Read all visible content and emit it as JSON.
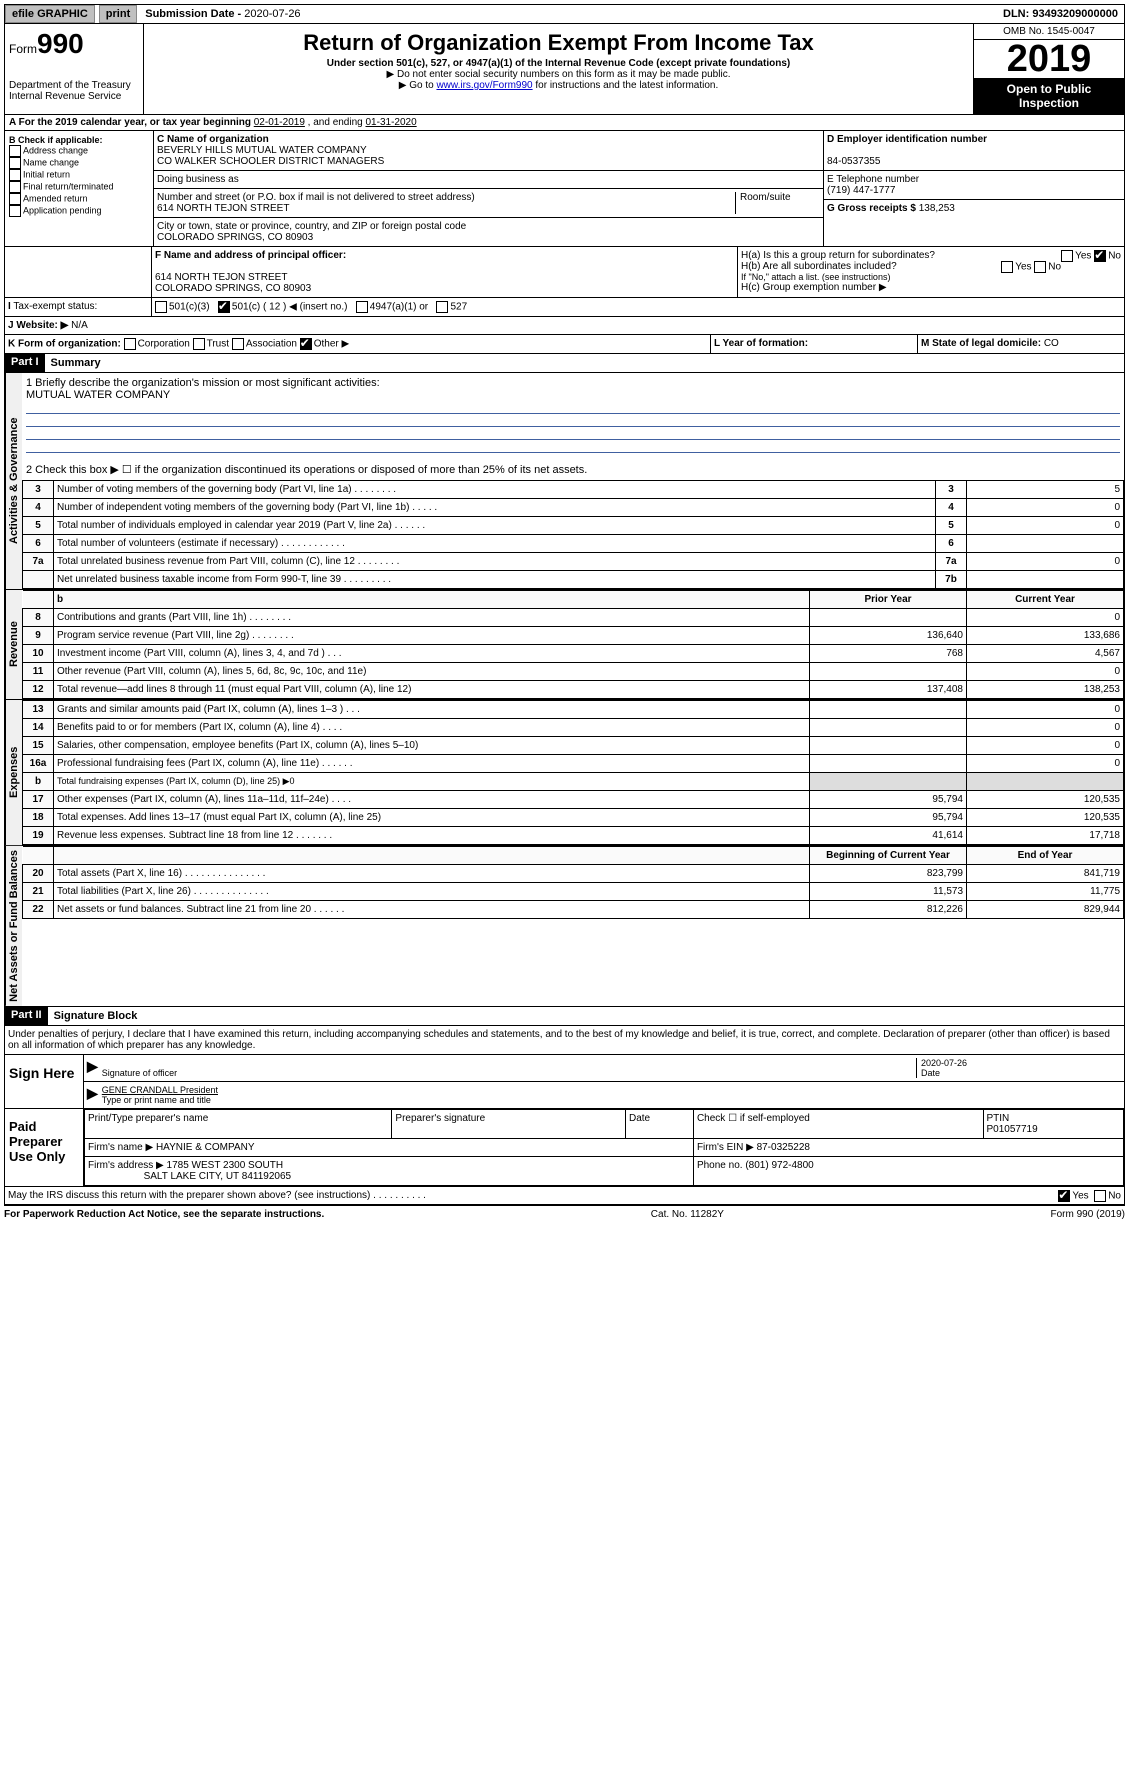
{
  "topbar": {
    "efile": "efile GRAPHIC",
    "print": "print",
    "subdate_lbl": "Submission Date - ",
    "subdate": "2020-07-26",
    "dln_lbl": "DLN: ",
    "dln": "93493209000000"
  },
  "header": {
    "form_prefix": "Form",
    "form_no": "990",
    "dept": "Department of the Treasury\nInternal Revenue Service",
    "title": "Return of Organization Exempt From Income Tax",
    "subtitle": "Under section 501(c), 527, or 4947(a)(1) of the Internal Revenue Code (except private foundations)",
    "note1": "▶ Do not enter social security numbers on this form as it may be made public.",
    "note2_pre": "▶ Go to ",
    "note2_link": "www.irs.gov/Form990",
    "note2_post": " for instructions and the latest information.",
    "omb": "OMB No. 1545-0047",
    "year": "2019",
    "open": "Open to Public Inspection"
  },
  "A": {
    "text": "A For the 2019 calendar year, or tax year beginning ",
    "begin": "02-01-2019",
    "mid": " , and ending ",
    "end": "01-31-2020"
  },
  "B": {
    "hdr": "B Check if applicable:",
    "items": [
      "Address change",
      "Name change",
      "Initial return",
      "Final return/terminated",
      "Amended return",
      "Application pending"
    ]
  },
  "C": {
    "name_lbl": "C Name of organization",
    "name": "BEVERLY HILLS MUTUAL WATER COMPANY",
    "co": "CO WALKER SCHOOLER DISTRICT MANAGERS",
    "dba_lbl": "Doing business as",
    "addr_lbl": "Number and street (or P.O. box if mail is not delivered to street address)",
    "room_lbl": "Room/suite",
    "addr": "614 NORTH TEJON STREET",
    "city_lbl": "City or town, state or province, country, and ZIP or foreign postal code",
    "city": "COLORADO SPRINGS, CO  80903"
  },
  "D": {
    "lbl": "D Employer identification number",
    "val": "84-0537355"
  },
  "E": {
    "lbl": "E Telephone number",
    "val": "(719) 447-1777"
  },
  "G": {
    "lbl": "G Gross receipts $ ",
    "val": "138,253"
  },
  "F": {
    "lbl": "F Name and address of principal officer:",
    "addr1": "614 NORTH TEJON STREET",
    "addr2": "COLORADO SPRINGS, CO  80903"
  },
  "H": {
    "a": "H(a)  Is this a group return for subordinates?",
    "b": "H(b)  Are all subordinates included?",
    "b_note": "If \"No,\" attach a list. (see instructions)",
    "c": "H(c)  Group exemption number ▶",
    "yes": "Yes",
    "no": "No"
  },
  "I": {
    "lbl": "Tax-exempt status:",
    "o1": "501(c)(3)",
    "o2": "501(c) ( 12 ) ◀ (insert no.)",
    "o3": "4947(a)(1) or",
    "o4": "527"
  },
  "J": {
    "lbl": "Website: ▶",
    "val": "N/A"
  },
  "K": {
    "lbl": "K Form of organization:",
    "o1": "Corporation",
    "o2": "Trust",
    "o3": "Association",
    "o4": "Other ▶"
  },
  "L": {
    "lbl": "L Year of formation:"
  },
  "M": {
    "lbl": "M State of legal domicile: ",
    "val": "CO"
  },
  "parts": {
    "p1": "Part I",
    "p1t": "Summary",
    "p2": "Part II",
    "p2t": "Signature Block",
    "vtabs": [
      "Activities & Governance",
      "Revenue",
      "Expenses",
      "Net Assets or Fund Balances"
    ]
  },
  "summary": {
    "q1": "1  Briefly describe the organization's mission or most significant activities:",
    "mission": "MUTUAL WATER COMPANY",
    "q2": "2  Check this box ▶ ☐  if the organization discontinued its operations or disposed of more than 25% of its net assets.",
    "rows1": [
      {
        "n": "3",
        "t": "Number of voting members of the governing body (Part VI, line 1a)  .   .   .   .   .   .   .   .",
        "rn": "3",
        "v": "5"
      },
      {
        "n": "4",
        "t": "Number of independent voting members of the governing body (Part VI, line 1b)  .   .   .   .   .",
        "rn": "4",
        "v": "0"
      },
      {
        "n": "5",
        "t": "Total number of individuals employed in calendar year 2019 (Part V, line 2a)  .   .   .   .   .   .",
        "rn": "5",
        "v": "0"
      },
      {
        "n": "6",
        "t": "Total number of volunteers (estimate if necessary)  .   .   .   .   .   .   .   .   .   .   .   .",
        "rn": "6",
        "v": ""
      },
      {
        "n": "7a",
        "t": "Total unrelated business revenue from Part VIII, column (C), line 12  .   .   .   .   .   .   .   .",
        "rn": "7a",
        "v": "0"
      },
      {
        "n": "",
        "t": "Net unrelated business taxable income from Form 990-T, line 39  .   .   .   .   .   .   .   .   .",
        "rn": "7b",
        "v": ""
      }
    ],
    "col_prior": "Prior Year",
    "col_curr": "Current Year",
    "rows2": [
      {
        "n": "8",
        "t": "Contributions and grants (Part VIII, line 1h)  .   .   .   .   .   .   .   .",
        "p": "",
        "c": "0"
      },
      {
        "n": "9",
        "t": "Program service revenue (Part VIII, line 2g)  .   .   .   .   .   .   .   .",
        "p": "136,640",
        "c": "133,686"
      },
      {
        "n": "10",
        "t": "Investment income (Part VIII, column (A), lines 3, 4, and 7d )  .   .   .",
        "p": "768",
        "c": "4,567"
      },
      {
        "n": "11",
        "t": "Other revenue (Part VIII, column (A), lines 5, 6d, 8c, 9c, 10c, and 11e)",
        "p": "",
        "c": "0"
      },
      {
        "n": "12",
        "t": "Total revenue—add lines 8 through 11 (must equal Part VIII, column (A), line 12)",
        "p": "137,408",
        "c": "138,253"
      }
    ],
    "rows3": [
      {
        "n": "13",
        "t": "Grants and similar amounts paid (Part IX, column (A), lines 1–3 )  .   .   .",
        "p": "",
        "c": "0"
      },
      {
        "n": "14",
        "t": "Benefits paid to or for members (Part IX, column (A), line 4)  .   .   .   .",
        "p": "",
        "c": "0"
      },
      {
        "n": "15",
        "t": "Salaries, other compensation, employee benefits (Part IX, column (A), lines 5–10)",
        "p": "",
        "c": "0"
      },
      {
        "n": "16a",
        "t": "Professional fundraising fees (Part IX, column (A), line 11e)  .   .   .   .   .   .",
        "p": "",
        "c": "0"
      },
      {
        "n": "b",
        "t": "Total fundraising expenses (Part IX, column (D), line 25) ▶0",
        "p": "—",
        "c": "—"
      },
      {
        "n": "17",
        "t": "Other expenses (Part IX, column (A), lines 11a–11d, 11f–24e)  .   .   .   .",
        "p": "95,794",
        "c": "120,535"
      },
      {
        "n": "18",
        "t": "Total expenses. Add lines 13–17 (must equal Part IX, column (A), line 25)",
        "p": "95,794",
        "c": "120,535"
      },
      {
        "n": "19",
        "t": "Revenue less expenses. Subtract line 18 from line 12  .   .   .   .   .   .   .",
        "p": "41,614",
        "c": "17,718"
      }
    ],
    "col_begin": "Beginning of Current Year",
    "col_end": "End of Year",
    "rows4": [
      {
        "n": "20",
        "t": "Total assets (Part X, line 16)  .   .   .   .   .   .   .   .   .   .   .   .   .   .   .",
        "p": "823,799",
        "c": "841,719"
      },
      {
        "n": "21",
        "t": "Total liabilities (Part X, line 26)  .   .   .   .   .   .   .   .   .   .   .   .   .   .",
        "p": "11,573",
        "c": "11,775"
      },
      {
        "n": "22",
        "t": "Net assets or fund balances. Subtract line 21 from line 20  .   .   .   .   .   .",
        "p": "812,226",
        "c": "829,944"
      }
    ]
  },
  "perjury": "Under penalties of perjury, I declare that I have examined this return, including accompanying schedules and statements, and to the best of my knowledge and belief, it is true, correct, and complete. Declaration of preparer (other than officer) is based on all information of which preparer has any knowledge.",
  "sign": {
    "here": "Sign Here",
    "sig_lbl": "Signature of officer",
    "date_lbl": "Date",
    "date": "2020-07-26",
    "name": "GENE CRANDALL President",
    "name_lbl": "Type or print name and title"
  },
  "paid": {
    "here": "Paid Preparer Use Only",
    "h1": "Print/Type preparer's name",
    "h2": "Preparer's signature",
    "h3": "Date",
    "h4": "Check ☐ if self-employed",
    "h5": "PTIN",
    "ptin": "P01057719",
    "firm_lbl": "Firm's name   ▶",
    "firm": "HAYNIE & COMPANY",
    "ein_lbl": "Firm's EIN ▶",
    "ein": "87-0325228",
    "addr_lbl": "Firm's address ▶",
    "addr1": "1785 WEST 2300 SOUTH",
    "addr2": "SALT LAKE CITY, UT  841192065",
    "phone_lbl": "Phone no. ",
    "phone": "(801) 972-4800"
  },
  "discuss": {
    "q": "May the IRS discuss this return with the preparer shown above? (see instructions)  .   .   .   .   .   .   .   .   .   .",
    "yes": "Yes",
    "no": "No"
  },
  "footer": {
    "l": "For Paperwork Reduction Act Notice, see the separate instructions.",
    "m": "Cat. No. 11282Y",
    "r": "Form 990 (2019)"
  }
}
